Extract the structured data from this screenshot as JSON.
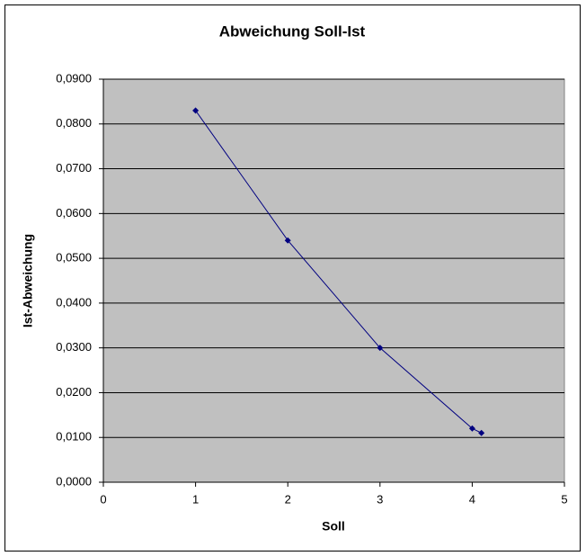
{
  "chart_data": {
    "type": "line",
    "title": "Abweichung Soll-Ist",
    "x_label": "Soll",
    "y_label": "Ist-Abweichung",
    "series": [
      {
        "color": "#000080",
        "x": [
          1,
          2,
          3,
          4,
          4.1
        ],
        "values": [
          0.083,
          0.054,
          0.03,
          0.012,
          0.011
        ]
      }
    ],
    "xlim": [
      0,
      5
    ],
    "xticks": [
      0,
      1,
      2,
      3,
      4,
      5
    ],
    "ylim": [
      0,
      0.09
    ],
    "yticks": [
      {
        "value": 0,
        "label": "0,0000"
      },
      {
        "value": 0.01,
        "label": "0,0100"
      },
      {
        "value": 0.02,
        "label": "0,0200"
      },
      {
        "value": 0.03,
        "label": "0,0300"
      },
      {
        "value": 0.04,
        "label": "0,0400"
      },
      {
        "value": 0.05,
        "label": "0,0500"
      },
      {
        "value": 0.06,
        "label": "0,0600"
      },
      {
        "value": 0.07,
        "label": "0,0700"
      },
      {
        "value": 0.08,
        "label": "0,0800"
      },
      {
        "value": 0.09,
        "label": "0,0900"
      }
    ],
    "grid": true
  }
}
